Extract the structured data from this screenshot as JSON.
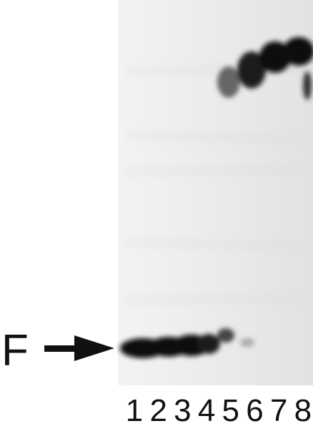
{
  "label": "F",
  "lanes": [
    "1",
    "2",
    "3",
    "4",
    "5",
    "6",
    "7",
    "8"
  ]
}
